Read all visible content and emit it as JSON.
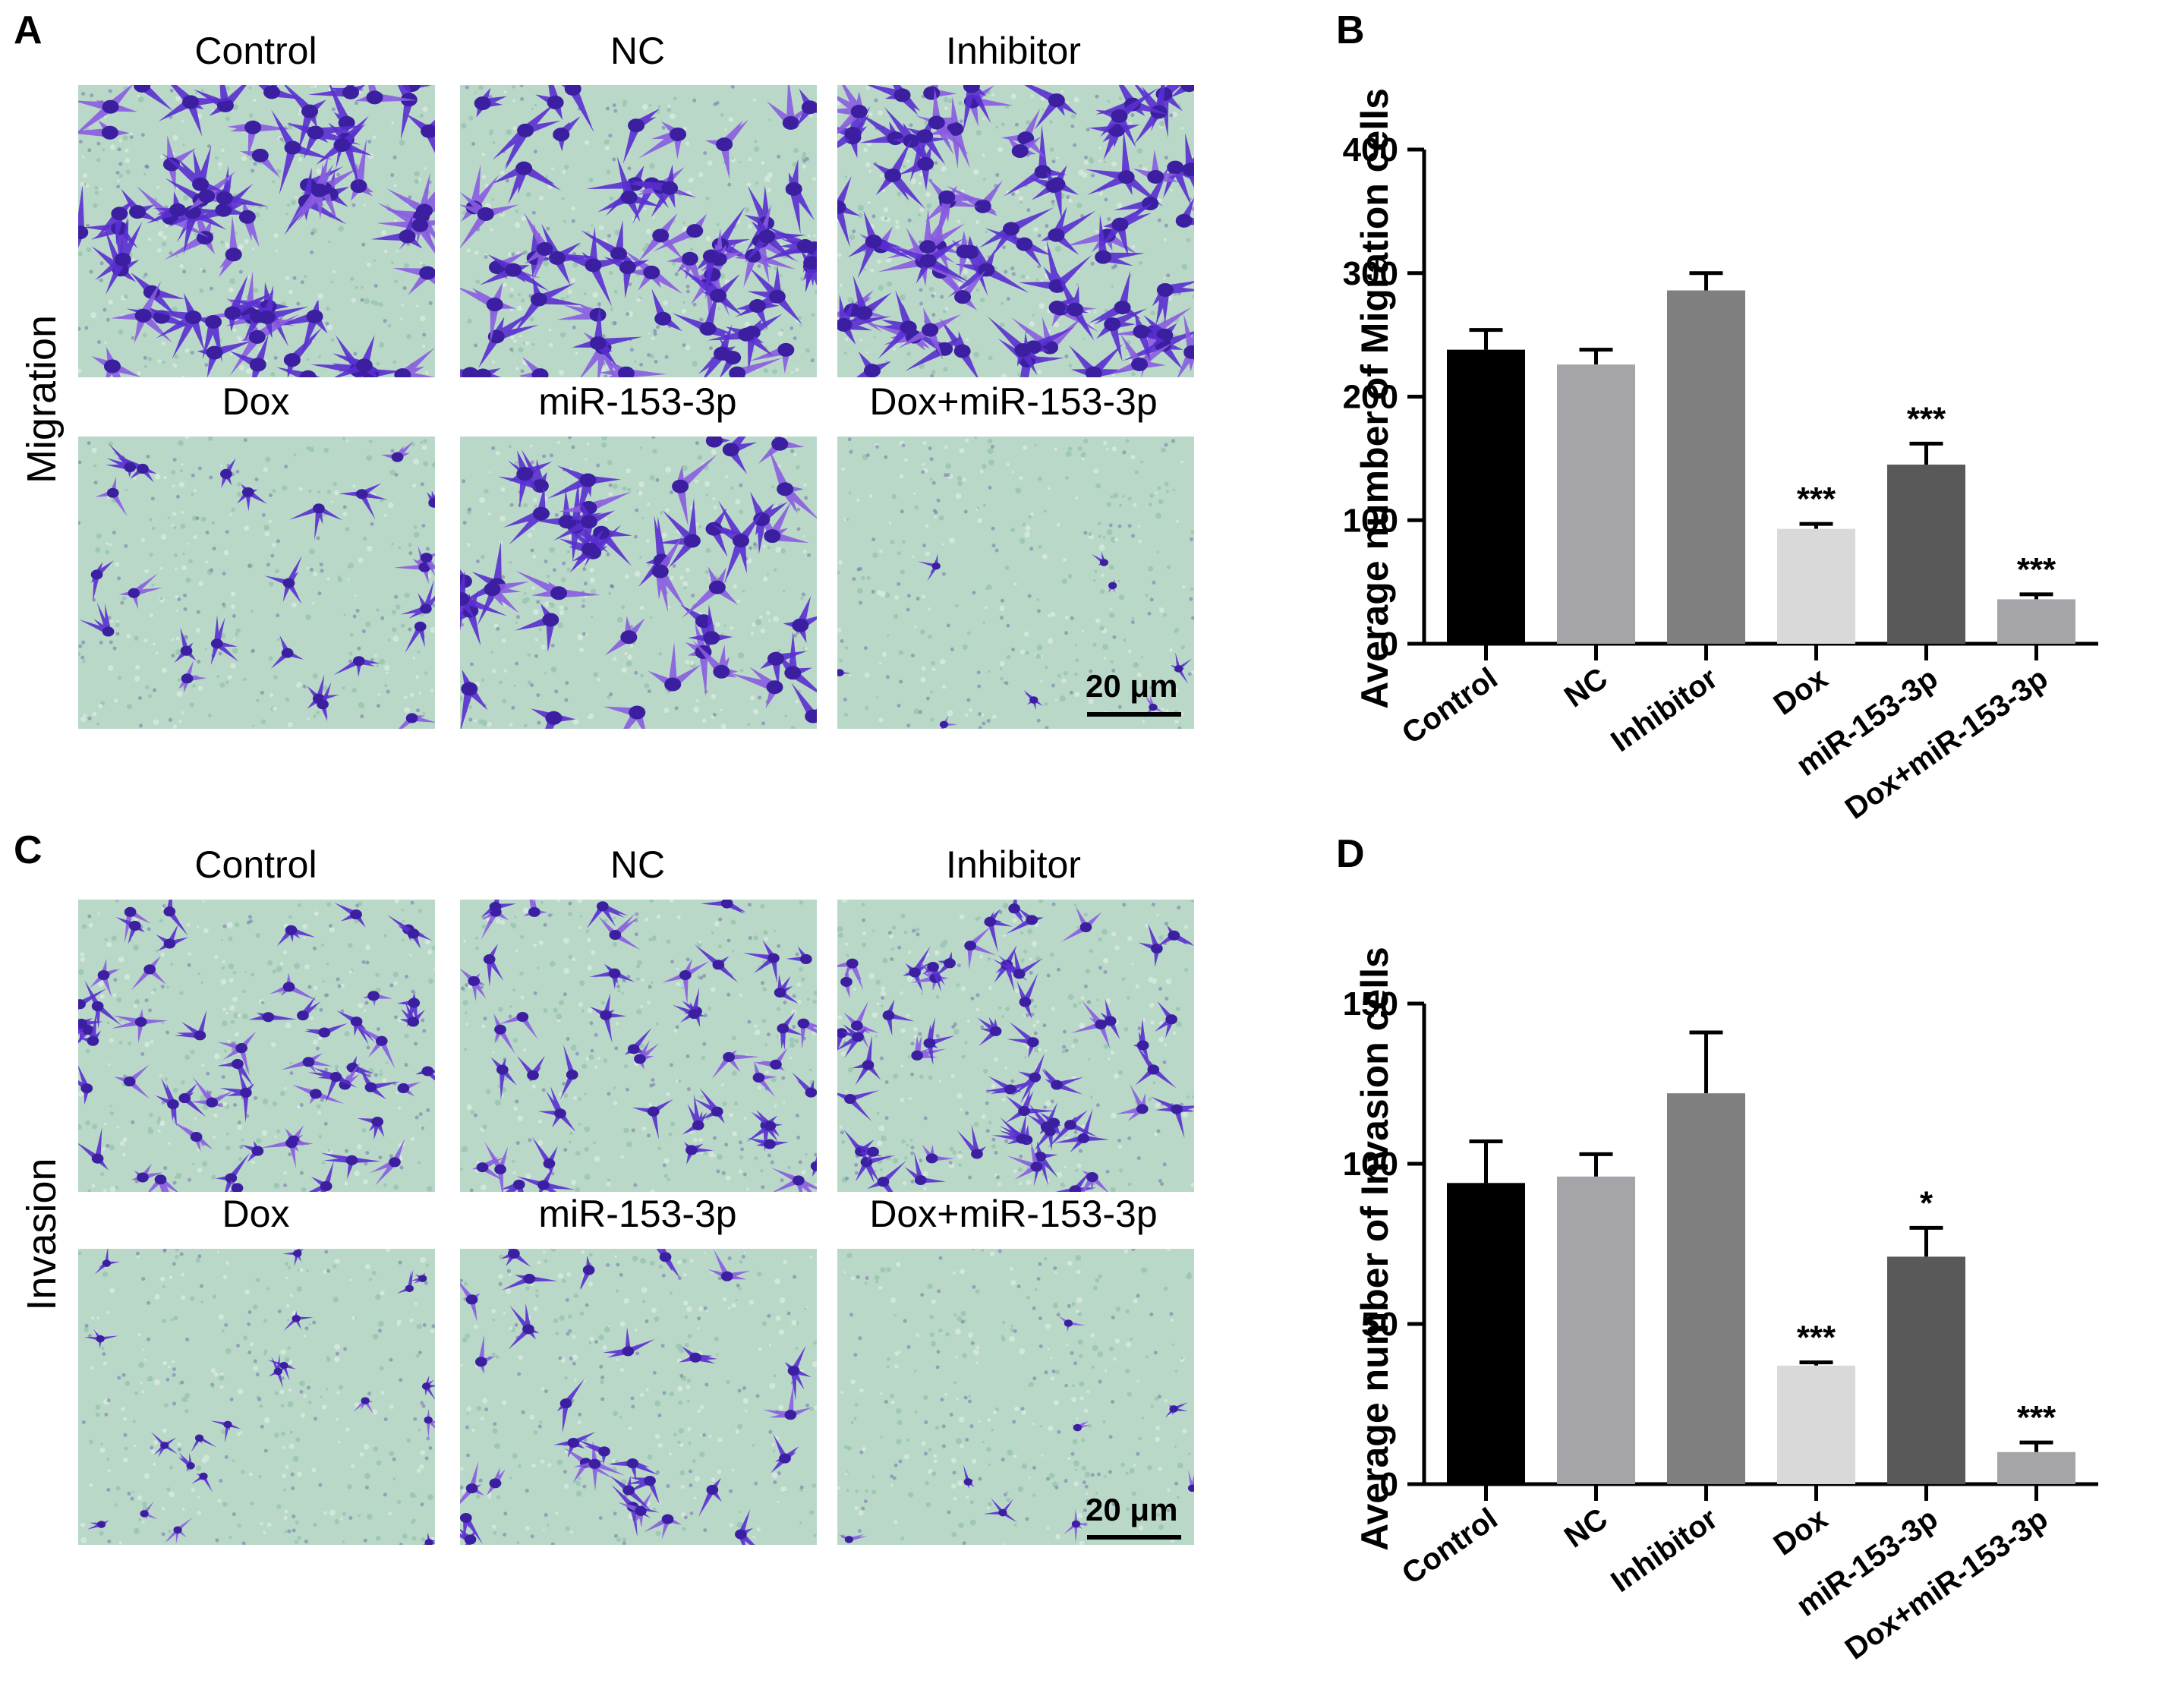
{
  "panels": {
    "a": "A",
    "b": "B",
    "c": "C",
    "d": "D"
  },
  "rows": {
    "migration": "Migration",
    "invasion": "Invasion"
  },
  "image_labels": {
    "top": [
      "Control",
      "NC",
      "Inhibitor"
    ],
    "bottom": [
      "Dox",
      "miR-153-3p",
      "Dox+miR-153-3p"
    ]
  },
  "scalebar": "20 μm",
  "colors": {
    "stain": "#5a2fd0",
    "stain_light": "#8a5ce0",
    "background_field": "#b9d8c8",
    "bar_control": "#000000",
    "bar_nc": "#a5a4a8",
    "bar_inhibitor": "#7f7f7f",
    "bar_dox": "#d9d9d9",
    "bar_mir": "#595959",
    "bar_combo": "#a5a4a8"
  },
  "chart_data": [
    {
      "type": "bar",
      "ylabel": "Average number of Migration cells",
      "categories": [
        "Control",
        "NC",
        "Inhibitor",
        "Dox",
        "miR-153-3p",
        "Dox+miR-153-3p"
      ],
      "values": [
        238,
        226,
        286,
        93,
        145,
        36
      ],
      "errors": [
        16,
        12,
        14,
        4,
        17,
        4
      ],
      "significance": [
        "",
        "",
        "",
        "***",
        "***",
        "***"
      ],
      "ylim": [
        0,
        400
      ],
      "yticks": [
        "0",
        "100",
        "200",
        "300",
        "400"
      ]
    },
    {
      "type": "bar",
      "ylabel": "Average number of Invasion  cells",
      "categories": [
        "Control",
        "NC",
        "Inhibitor",
        "Dox",
        "miR-153-3p",
        "Dox+miR-153-3p"
      ],
      "values": [
        94,
        96,
        122,
        37,
        71,
        10
      ],
      "errors": [
        13,
        7,
        19,
        1,
        9,
        3
      ],
      "significance": [
        "",
        "",
        "",
        "***",
        "*",
        "***"
      ],
      "ylim": [
        0,
        150
      ],
      "yticks": [
        "0",
        "50",
        "100",
        "150"
      ]
    }
  ]
}
